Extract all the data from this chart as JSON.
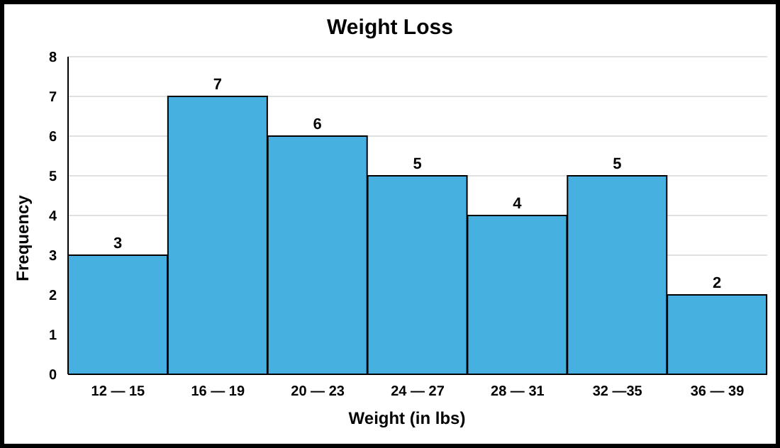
{
  "chart_data": {
    "type": "bar",
    "title": "Weight Loss",
    "xlabel": "Weight (in lbs)",
    "ylabel": "Frequency",
    "categories": [
      "12 — 15",
      "16 — 19",
      "20 — 23",
      "24 — 27",
      "28 — 31",
      "32 —35",
      "36 — 39"
    ],
    "values": [
      3,
      7,
      6,
      5,
      4,
      5,
      2
    ],
    "color": "#46b0e1",
    "ylim": [
      0,
      8
    ],
    "yticks": [
      0,
      1,
      2,
      3,
      4,
      5,
      6,
      7,
      8
    ],
    "grid": "y",
    "data_labels": true
  }
}
